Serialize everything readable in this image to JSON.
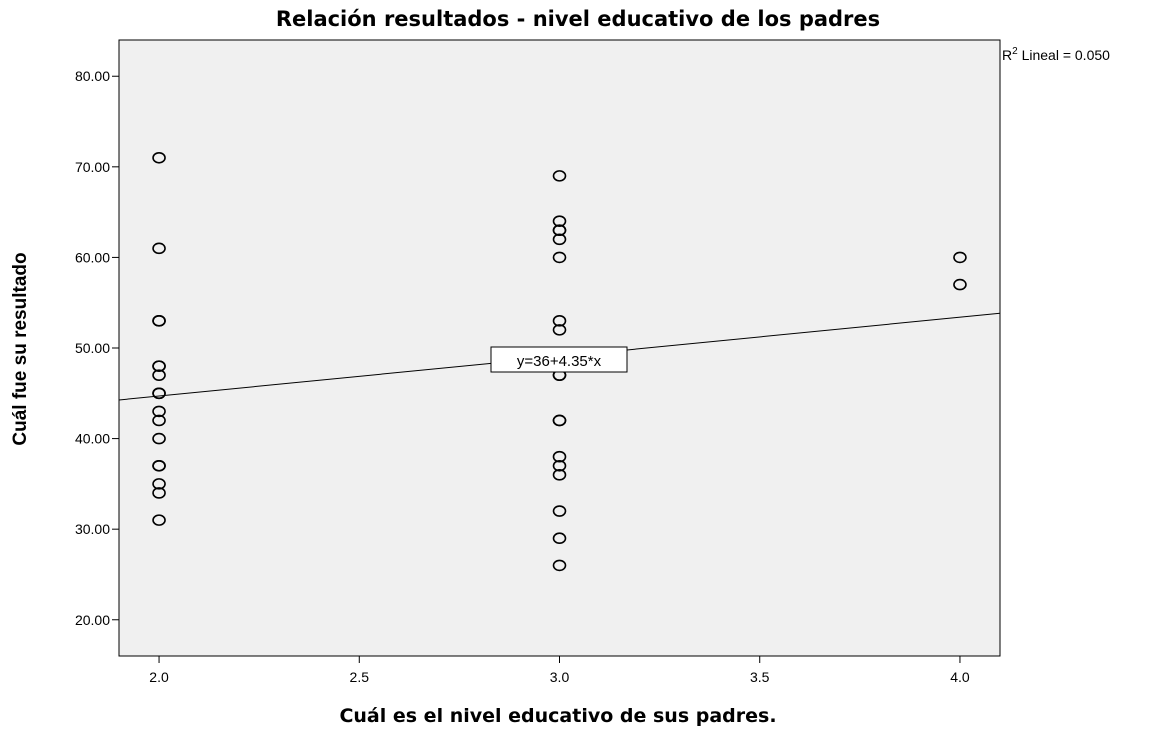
{
  "chart_data": {
    "type": "scatter",
    "title": "Relación resultados - nivel educativo de los padres",
    "xlabel": "Cuál es el nivel educativo de sus padres.",
    "ylabel": "Cuál fue su resultado",
    "xlim": [
      1.9,
      4.1
    ],
    "ylim": [
      16,
      84
    ],
    "x_ticks": [
      2.0,
      2.5,
      3.0,
      3.5,
      4.0
    ],
    "x_tick_labels": [
      "2.0",
      "2.5",
      "3.0",
      "3.5",
      "4.0"
    ],
    "y_ticks": [
      20,
      30,
      40,
      50,
      60,
      70,
      80
    ],
    "y_tick_labels": [
      "20.00",
      "30.00",
      "40.00",
      "50.00",
      "60.00",
      "70.00",
      "80.00"
    ],
    "points": [
      {
        "x": 2,
        "y": 71
      },
      {
        "x": 2,
        "y": 61
      },
      {
        "x": 2,
        "y": 53
      },
      {
        "x": 2,
        "y": 53
      },
      {
        "x": 2,
        "y": 48
      },
      {
        "x": 2,
        "y": 48
      },
      {
        "x": 2,
        "y": 47
      },
      {
        "x": 2,
        "y": 45
      },
      {
        "x": 2,
        "y": 45
      },
      {
        "x": 2,
        "y": 43
      },
      {
        "x": 2,
        "y": 42
      },
      {
        "x": 2,
        "y": 40
      },
      {
        "x": 2,
        "y": 37
      },
      {
        "x": 2,
        "y": 37
      },
      {
        "x": 2,
        "y": 35
      },
      {
        "x": 2,
        "y": 34
      },
      {
        "x": 2,
        "y": 31
      },
      {
        "x": 3,
        "y": 69
      },
      {
        "x": 3,
        "y": 64
      },
      {
        "x": 3,
        "y": 63
      },
      {
        "x": 3,
        "y": 63
      },
      {
        "x": 3,
        "y": 62
      },
      {
        "x": 3,
        "y": 60
      },
      {
        "x": 3,
        "y": 53
      },
      {
        "x": 3,
        "y": 52
      },
      {
        "x": 3,
        "y": 47
      },
      {
        "x": 3,
        "y": 47
      },
      {
        "x": 3,
        "y": 42
      },
      {
        "x": 3,
        "y": 42
      },
      {
        "x": 3,
        "y": 38
      },
      {
        "x": 3,
        "y": 37
      },
      {
        "x": 3,
        "y": 36
      },
      {
        "x": 3,
        "y": 32
      },
      {
        "x": 3,
        "y": 29
      },
      {
        "x": 3,
        "y": 26
      },
      {
        "x": 4,
        "y": 60
      },
      {
        "x": 4,
        "y": 57
      }
    ],
    "fit_line": {
      "intercept": 36,
      "slope": 4.35
    },
    "fit_label": "y=36+4.35*x",
    "r2_label_prefix": "R",
    "r2_label_sup": "2",
    "r2_label_suffix": " Lineal = 0.050",
    "grid": false,
    "colors": {
      "plot_background": "#f0f0f0",
      "marker": "#000000",
      "line": "#000000"
    }
  }
}
